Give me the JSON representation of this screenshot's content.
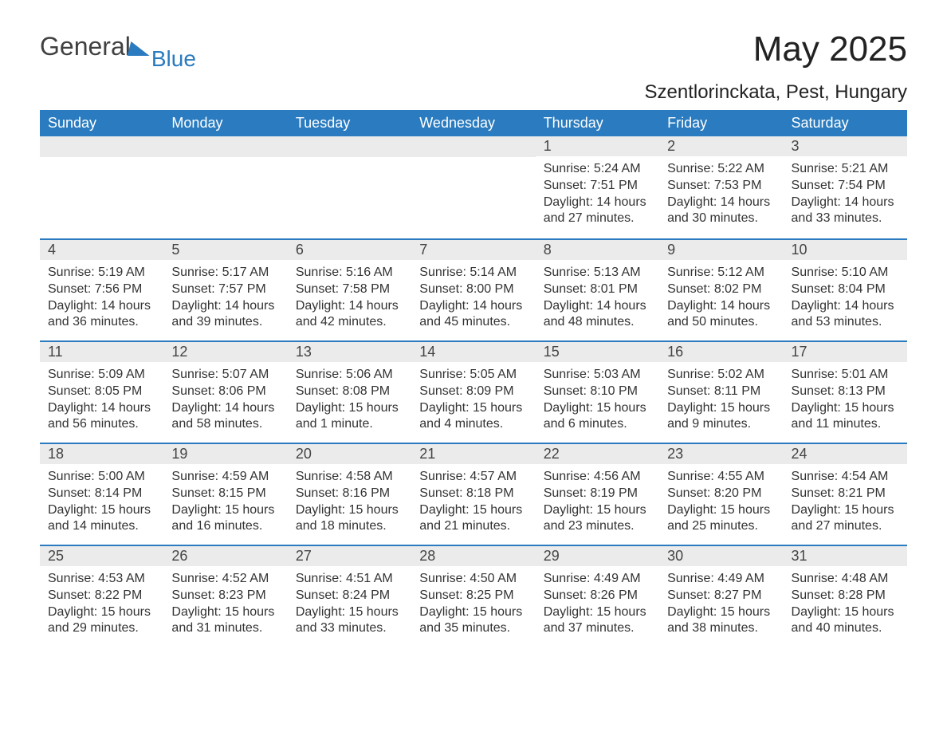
{
  "logo": {
    "text1": "General",
    "text2": "Blue"
  },
  "title": "May 2025",
  "location": "Szentlorinckata, Pest, Hungary",
  "colors": {
    "header_bg": "#2a7bbf",
    "header_text": "#ffffff",
    "daynum_bg": "#ebebeb",
    "text": "#333333",
    "page_bg": "#ffffff"
  },
  "daysOfWeek": [
    "Sunday",
    "Monday",
    "Tuesday",
    "Wednesday",
    "Thursday",
    "Friday",
    "Saturday"
  ],
  "weeks": [
    [
      {
        "empty": true
      },
      {
        "empty": true
      },
      {
        "empty": true
      },
      {
        "empty": true
      },
      {
        "num": "1",
        "sunrise": "5:24 AM",
        "sunset": "7:51 PM",
        "daylight": "14 hours and 27 minutes."
      },
      {
        "num": "2",
        "sunrise": "5:22 AM",
        "sunset": "7:53 PM",
        "daylight": "14 hours and 30 minutes."
      },
      {
        "num": "3",
        "sunrise": "5:21 AM",
        "sunset": "7:54 PM",
        "daylight": "14 hours and 33 minutes."
      }
    ],
    [
      {
        "num": "4",
        "sunrise": "5:19 AM",
        "sunset": "7:56 PM",
        "daylight": "14 hours and 36 minutes."
      },
      {
        "num": "5",
        "sunrise": "5:17 AM",
        "sunset": "7:57 PM",
        "daylight": "14 hours and 39 minutes."
      },
      {
        "num": "6",
        "sunrise": "5:16 AM",
        "sunset": "7:58 PM",
        "daylight": "14 hours and 42 minutes."
      },
      {
        "num": "7",
        "sunrise": "5:14 AM",
        "sunset": "8:00 PM",
        "daylight": "14 hours and 45 minutes."
      },
      {
        "num": "8",
        "sunrise": "5:13 AM",
        "sunset": "8:01 PM",
        "daylight": "14 hours and 48 minutes."
      },
      {
        "num": "9",
        "sunrise": "5:12 AM",
        "sunset": "8:02 PM",
        "daylight": "14 hours and 50 minutes."
      },
      {
        "num": "10",
        "sunrise": "5:10 AM",
        "sunset": "8:04 PM",
        "daylight": "14 hours and 53 minutes."
      }
    ],
    [
      {
        "num": "11",
        "sunrise": "5:09 AM",
        "sunset": "8:05 PM",
        "daylight": "14 hours and 56 minutes."
      },
      {
        "num": "12",
        "sunrise": "5:07 AM",
        "sunset": "8:06 PM",
        "daylight": "14 hours and 58 minutes."
      },
      {
        "num": "13",
        "sunrise": "5:06 AM",
        "sunset": "8:08 PM",
        "daylight": "15 hours and 1 minute."
      },
      {
        "num": "14",
        "sunrise": "5:05 AM",
        "sunset": "8:09 PM",
        "daylight": "15 hours and 4 minutes."
      },
      {
        "num": "15",
        "sunrise": "5:03 AM",
        "sunset": "8:10 PM",
        "daylight": "15 hours and 6 minutes."
      },
      {
        "num": "16",
        "sunrise": "5:02 AM",
        "sunset": "8:11 PM",
        "daylight": "15 hours and 9 minutes."
      },
      {
        "num": "17",
        "sunrise": "5:01 AM",
        "sunset": "8:13 PM",
        "daylight": "15 hours and 11 minutes."
      }
    ],
    [
      {
        "num": "18",
        "sunrise": "5:00 AM",
        "sunset": "8:14 PM",
        "daylight": "15 hours and 14 minutes."
      },
      {
        "num": "19",
        "sunrise": "4:59 AM",
        "sunset": "8:15 PM",
        "daylight": "15 hours and 16 minutes."
      },
      {
        "num": "20",
        "sunrise": "4:58 AM",
        "sunset": "8:16 PM",
        "daylight": "15 hours and 18 minutes."
      },
      {
        "num": "21",
        "sunrise": "4:57 AM",
        "sunset": "8:18 PM",
        "daylight": "15 hours and 21 minutes."
      },
      {
        "num": "22",
        "sunrise": "4:56 AM",
        "sunset": "8:19 PM",
        "daylight": "15 hours and 23 minutes."
      },
      {
        "num": "23",
        "sunrise": "4:55 AM",
        "sunset": "8:20 PM",
        "daylight": "15 hours and 25 minutes."
      },
      {
        "num": "24",
        "sunrise": "4:54 AM",
        "sunset": "8:21 PM",
        "daylight": "15 hours and 27 minutes."
      }
    ],
    [
      {
        "num": "25",
        "sunrise": "4:53 AM",
        "sunset": "8:22 PM",
        "daylight": "15 hours and 29 minutes."
      },
      {
        "num": "26",
        "sunrise": "4:52 AM",
        "sunset": "8:23 PM",
        "daylight": "15 hours and 31 minutes."
      },
      {
        "num": "27",
        "sunrise": "4:51 AM",
        "sunset": "8:24 PM",
        "daylight": "15 hours and 33 minutes."
      },
      {
        "num": "28",
        "sunrise": "4:50 AM",
        "sunset": "8:25 PM",
        "daylight": "15 hours and 35 minutes."
      },
      {
        "num": "29",
        "sunrise": "4:49 AM",
        "sunset": "8:26 PM",
        "daylight": "15 hours and 37 minutes."
      },
      {
        "num": "30",
        "sunrise": "4:49 AM",
        "sunset": "8:27 PM",
        "daylight": "15 hours and 38 minutes."
      },
      {
        "num": "31",
        "sunrise": "4:48 AM",
        "sunset": "8:28 PM",
        "daylight": "15 hours and 40 minutes."
      }
    ]
  ],
  "labels": {
    "sunrise": "Sunrise:",
    "sunset": "Sunset:",
    "daylight": "Daylight:"
  }
}
